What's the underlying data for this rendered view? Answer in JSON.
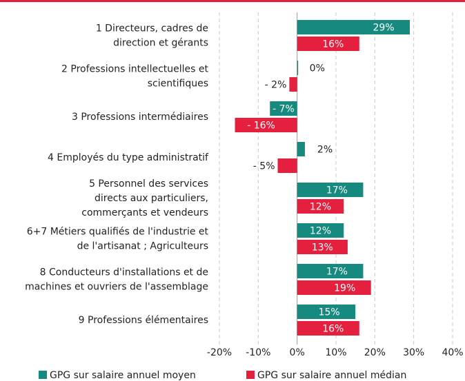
{
  "chart_data": {
    "type": "hbar",
    "categories": [
      [
        "1 Directeurs, cadres de",
        "direction et gérants"
      ],
      [
        "2 Professions intellectuelles et",
        "scientifiques"
      ],
      [
        "3 Professions intermédiaires"
      ],
      [
        "4 Employés du type administratif"
      ],
      [
        "5 Personnel des services",
        "directs aux particuliers,",
        "commerçants et vendeurs"
      ],
      [
        "6+7 Métiers qualifiés de l'industrie et",
        "de l'artisanat ; Agriculteurs"
      ],
      [
        "8 Conducteurs d'installations et de",
        "machines et ouvriers de l'assemblage"
      ],
      [
        "9 Professions élémentaires"
      ]
    ],
    "series": [
      {
        "name": "GPG sur salaire annuel moyen",
        "color": "#168a7e",
        "values": [
          29,
          0,
          -7,
          2,
          17,
          12,
          17,
          15
        ],
        "value_labels": [
          "29%",
          "0%",
          "- 7%",
          "2%",
          "17%",
          "12%",
          "17%",
          "15%"
        ]
      },
      {
        "name": "GPG sur salaire annuel médian",
        "color": "#e5203f",
        "values": [
          16,
          -2,
          -16,
          -5,
          12,
          13,
          19,
          16
        ],
        "value_labels": [
          "16%",
          "- 2%",
          "- 16%",
          "- 5%",
          "12%",
          "13%",
          "19%",
          "16%"
        ]
      }
    ],
    "xlim": [
      -20,
      40
    ],
    "xticks": [
      {
        "value": -20,
        "label": "-20%"
      },
      {
        "value": -10,
        "label": "-10%"
      },
      {
        "value": 0,
        "label": "0%"
      },
      {
        "value": 10,
        "label": "10%"
      },
      {
        "value": 20,
        "label": "20%"
      },
      {
        "value": 30,
        "label": "30%"
      },
      {
        "value": 40,
        "label": "40%"
      }
    ],
    "grid": true
  }
}
